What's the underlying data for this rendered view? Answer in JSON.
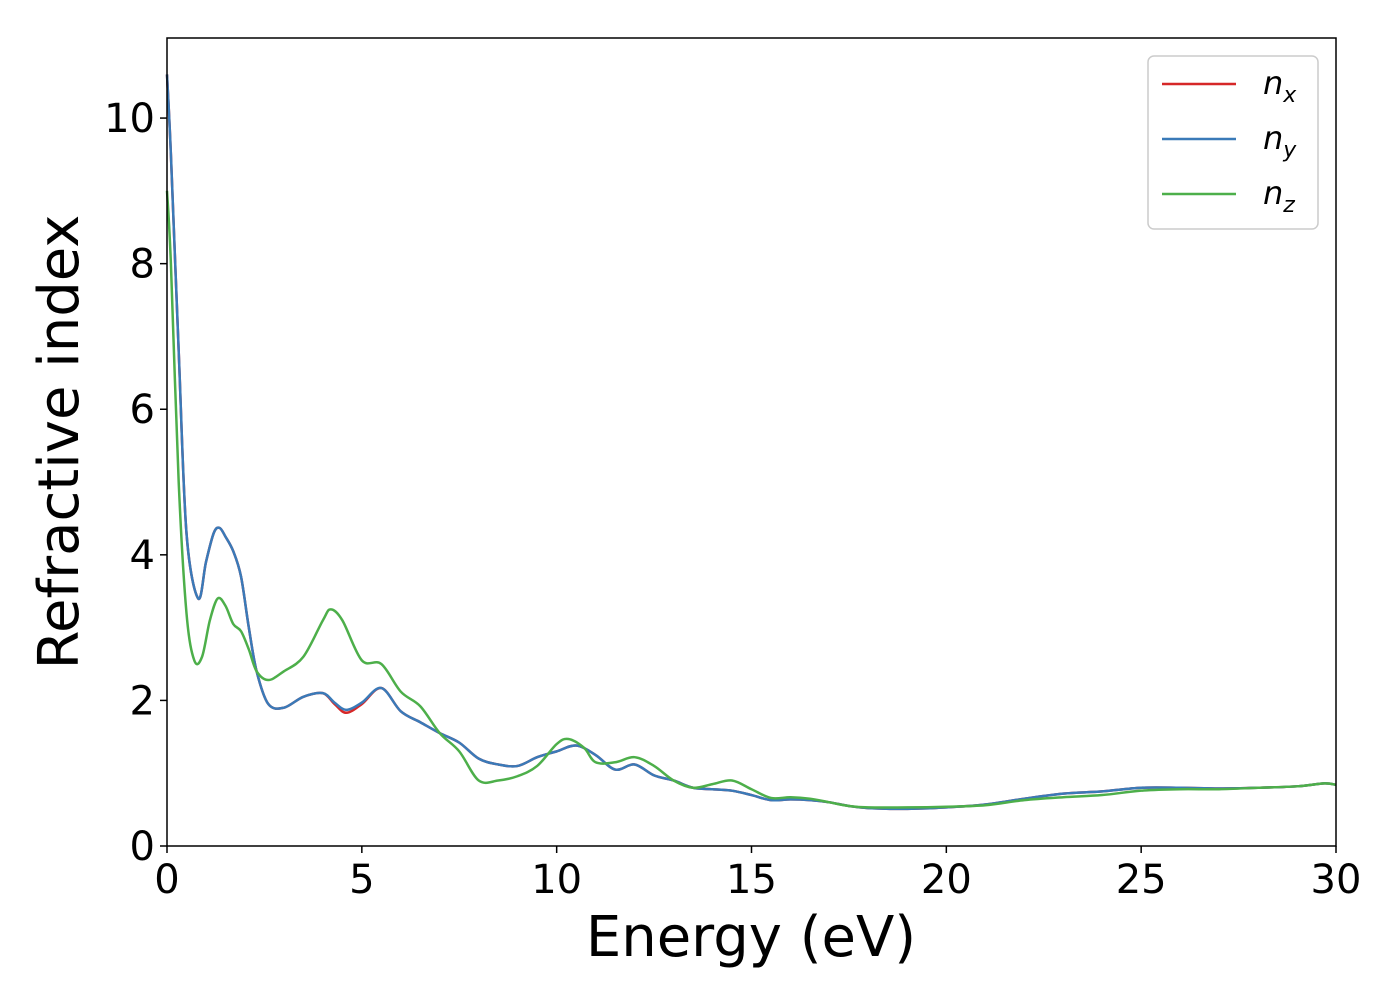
{
  "chart_data": {
    "type": "line",
    "title": "",
    "xlabel": "Energy (eV)",
    "ylabel": "Refractive index",
    "xlim": [
      0,
      30
    ],
    "ylim": [
      0,
      11.1
    ],
    "xticks": [
      0,
      5,
      10,
      15,
      20,
      25,
      30
    ],
    "yticks": [
      0,
      2,
      4,
      6,
      8,
      10
    ],
    "grid": false,
    "legend_position": "top-right",
    "colors": {
      "nx": "#d62728",
      "ny": "#3a7ab8",
      "nz": "#4daf4a"
    },
    "series": [
      {
        "key": "nx",
        "name": "n",
        "subscript": "x",
        "x": [
          0,
          0.1,
          0.3,
          0.5,
          0.8,
          1.0,
          1.2,
          1.35,
          1.5,
          1.7,
          1.9,
          2.1,
          2.3,
          2.6,
          3.0,
          3.5,
          4.0,
          4.3,
          4.6,
          5.0,
          5.5,
          6.0,
          6.5,
          7.0,
          7.5,
          8.0,
          8.5,
          9.0,
          9.5,
          10.0,
          10.5,
          11.0,
          11.5,
          12.0,
          12.5,
          13.0,
          13.5,
          14.0,
          14.5,
          15.0,
          15.5,
          16.0,
          16.5,
          17.0,
          17.5,
          18.0,
          19.0,
          20.0,
          21.0,
          22.0,
          23.0,
          24.0,
          25.0,
          26.0,
          27.0,
          28.0,
          29.0,
          29.7,
          30.0
        ],
        "y": [
          10.6,
          9.5,
          6.8,
          4.3,
          3.4,
          3.9,
          4.3,
          4.37,
          4.25,
          4.05,
          3.7,
          3.0,
          2.4,
          1.95,
          1.9,
          2.05,
          2.1,
          1.95,
          1.83,
          1.95,
          2.17,
          1.85,
          1.7,
          1.55,
          1.42,
          1.2,
          1.12,
          1.1,
          1.22,
          1.3,
          1.38,
          1.25,
          1.05,
          1.12,
          0.97,
          0.9,
          0.8,
          0.78,
          0.76,
          0.7,
          0.63,
          0.64,
          0.63,
          0.6,
          0.55,
          0.52,
          0.51,
          0.53,
          0.57,
          0.65,
          0.72,
          0.75,
          0.8,
          0.8,
          0.79,
          0.8,
          0.82,
          0.86,
          0.84
        ]
      },
      {
        "key": "ny",
        "name": "n",
        "subscript": "y",
        "x": [
          0,
          0.1,
          0.3,
          0.5,
          0.8,
          1.0,
          1.2,
          1.35,
          1.5,
          1.7,
          1.9,
          2.1,
          2.3,
          2.6,
          3.0,
          3.5,
          4.0,
          4.3,
          4.6,
          5.0,
          5.5,
          6.0,
          6.5,
          7.0,
          7.5,
          8.0,
          8.5,
          9.0,
          9.5,
          10.0,
          10.5,
          11.0,
          11.5,
          12.0,
          12.5,
          13.0,
          13.5,
          14.0,
          14.5,
          15.0,
          15.5,
          16.0,
          16.5,
          17.0,
          17.5,
          18.0,
          19.0,
          20.0,
          21.0,
          22.0,
          23.0,
          24.0,
          25.0,
          26.0,
          27.0,
          28.0,
          29.0,
          29.7,
          30.0
        ],
        "y": [
          10.6,
          9.5,
          6.8,
          4.3,
          3.4,
          3.9,
          4.3,
          4.37,
          4.25,
          4.05,
          3.7,
          3.0,
          2.4,
          1.95,
          1.9,
          2.05,
          2.1,
          1.97,
          1.87,
          1.97,
          2.17,
          1.85,
          1.7,
          1.55,
          1.42,
          1.2,
          1.12,
          1.1,
          1.22,
          1.3,
          1.38,
          1.25,
          1.05,
          1.12,
          0.97,
          0.9,
          0.8,
          0.78,
          0.76,
          0.7,
          0.63,
          0.64,
          0.63,
          0.6,
          0.55,
          0.52,
          0.51,
          0.53,
          0.57,
          0.65,
          0.72,
          0.75,
          0.8,
          0.8,
          0.79,
          0.8,
          0.82,
          0.86,
          0.84
        ]
      },
      {
        "key": "nz",
        "name": "n",
        "subscript": "z",
        "x": [
          0,
          0.1,
          0.3,
          0.5,
          0.7,
          0.9,
          1.1,
          1.3,
          1.5,
          1.7,
          1.9,
          2.1,
          2.3,
          2.6,
          3.0,
          3.5,
          4.0,
          4.2,
          4.5,
          5.0,
          5.5,
          6.0,
          6.5,
          7.0,
          7.5,
          8.0,
          8.5,
          9.0,
          9.5,
          10.0,
          10.3,
          10.7,
          11.0,
          11.5,
          12.0,
          12.5,
          13.0,
          13.5,
          14.0,
          14.5,
          15.0,
          15.5,
          16.0,
          16.5,
          17.0,
          17.5,
          18.0,
          19.0,
          20.0,
          21.0,
          22.0,
          23.0,
          24.0,
          25.0,
          26.0,
          27.0,
          28.0,
          29.0,
          29.7,
          30.0
        ],
        "y": [
          9.0,
          8.0,
          5.0,
          3.2,
          2.55,
          2.6,
          3.1,
          3.4,
          3.3,
          3.05,
          2.95,
          2.7,
          2.4,
          2.28,
          2.4,
          2.6,
          3.1,
          3.25,
          3.1,
          2.55,
          2.5,
          2.12,
          1.92,
          1.55,
          1.3,
          0.9,
          0.9,
          0.96,
          1.1,
          1.4,
          1.47,
          1.35,
          1.15,
          1.15,
          1.22,
          1.1,
          0.9,
          0.8,
          0.85,
          0.9,
          0.78,
          0.66,
          0.67,
          0.65,
          0.6,
          0.55,
          0.53,
          0.53,
          0.54,
          0.56,
          0.63,
          0.67,
          0.7,
          0.76,
          0.78,
          0.78,
          0.8,
          0.82,
          0.86,
          0.84
        ]
      }
    ]
  }
}
